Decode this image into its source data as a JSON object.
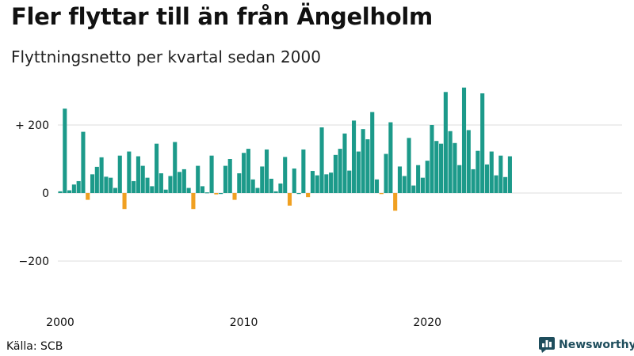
{
  "header": {
    "title": "Fler flyttar till än från Ängelholm",
    "subtitle": "Flyttningsnetto per kvartal sedan 2000"
  },
  "footer": {
    "source": "Källa: SCB",
    "brand": "Newsworthy",
    "brand_icon": "bar-chart-logo-icon"
  },
  "colors": {
    "positive": "#1c9a8a",
    "negative": "#f0a021",
    "grid": "#dddddd",
    "brand": "#1e4d5c"
  },
  "chart_data": {
    "type": "bar",
    "title": "Fler flyttar till än från Ängelholm",
    "subtitle": "Flyttningsnetto per kvartal sedan 2000",
    "xlabel": "",
    "ylabel": "",
    "x_start": "2000 Q1",
    "x_tick_labels": [
      "2000",
      "2010",
      "2020"
    ],
    "y_ticks": [
      {
        "value": 200,
        "label": "+ 200"
      },
      {
        "value": 0,
        "label": "0"
      },
      {
        "value": -200,
        "label": "−200"
      }
    ],
    "ylim": [
      -320,
      320
    ],
    "grid": true,
    "series": [
      {
        "values": [
          5,
          248,
          8,
          25,
          35,
          180,
          -20,
          55,
          77,
          105,
          48,
          45,
          15,
          110,
          -47,
          122,
          35,
          108,
          80,
          45,
          20,
          145,
          58,
          10,
          50,
          150,
          62,
          70,
          15,
          -47,
          80,
          20,
          2,
          110,
          -4,
          0,
          80,
          100,
          -20,
          58,
          118,
          130,
          40,
          15,
          78,
          128,
          42,
          5,
          28,
          106,
          -37,
          72,
          0,
          128,
          -12,
          65,
          52,
          193,
          55,
          60,
          112,
          130,
          175,
          66,
          213,
          122,
          188,
          158,
          238,
          40,
          -3,
          115,
          208,
          -52,
          78,
          50,
          162,
          22,
          82,
          45,
          95,
          200,
          153,
          145,
          297,
          182,
          147,
          82,
          310,
          185,
          70,
          124,
          293,
          84,
          122,
          52,
          110,
          47,
          108
        ]
      }
    ]
  }
}
